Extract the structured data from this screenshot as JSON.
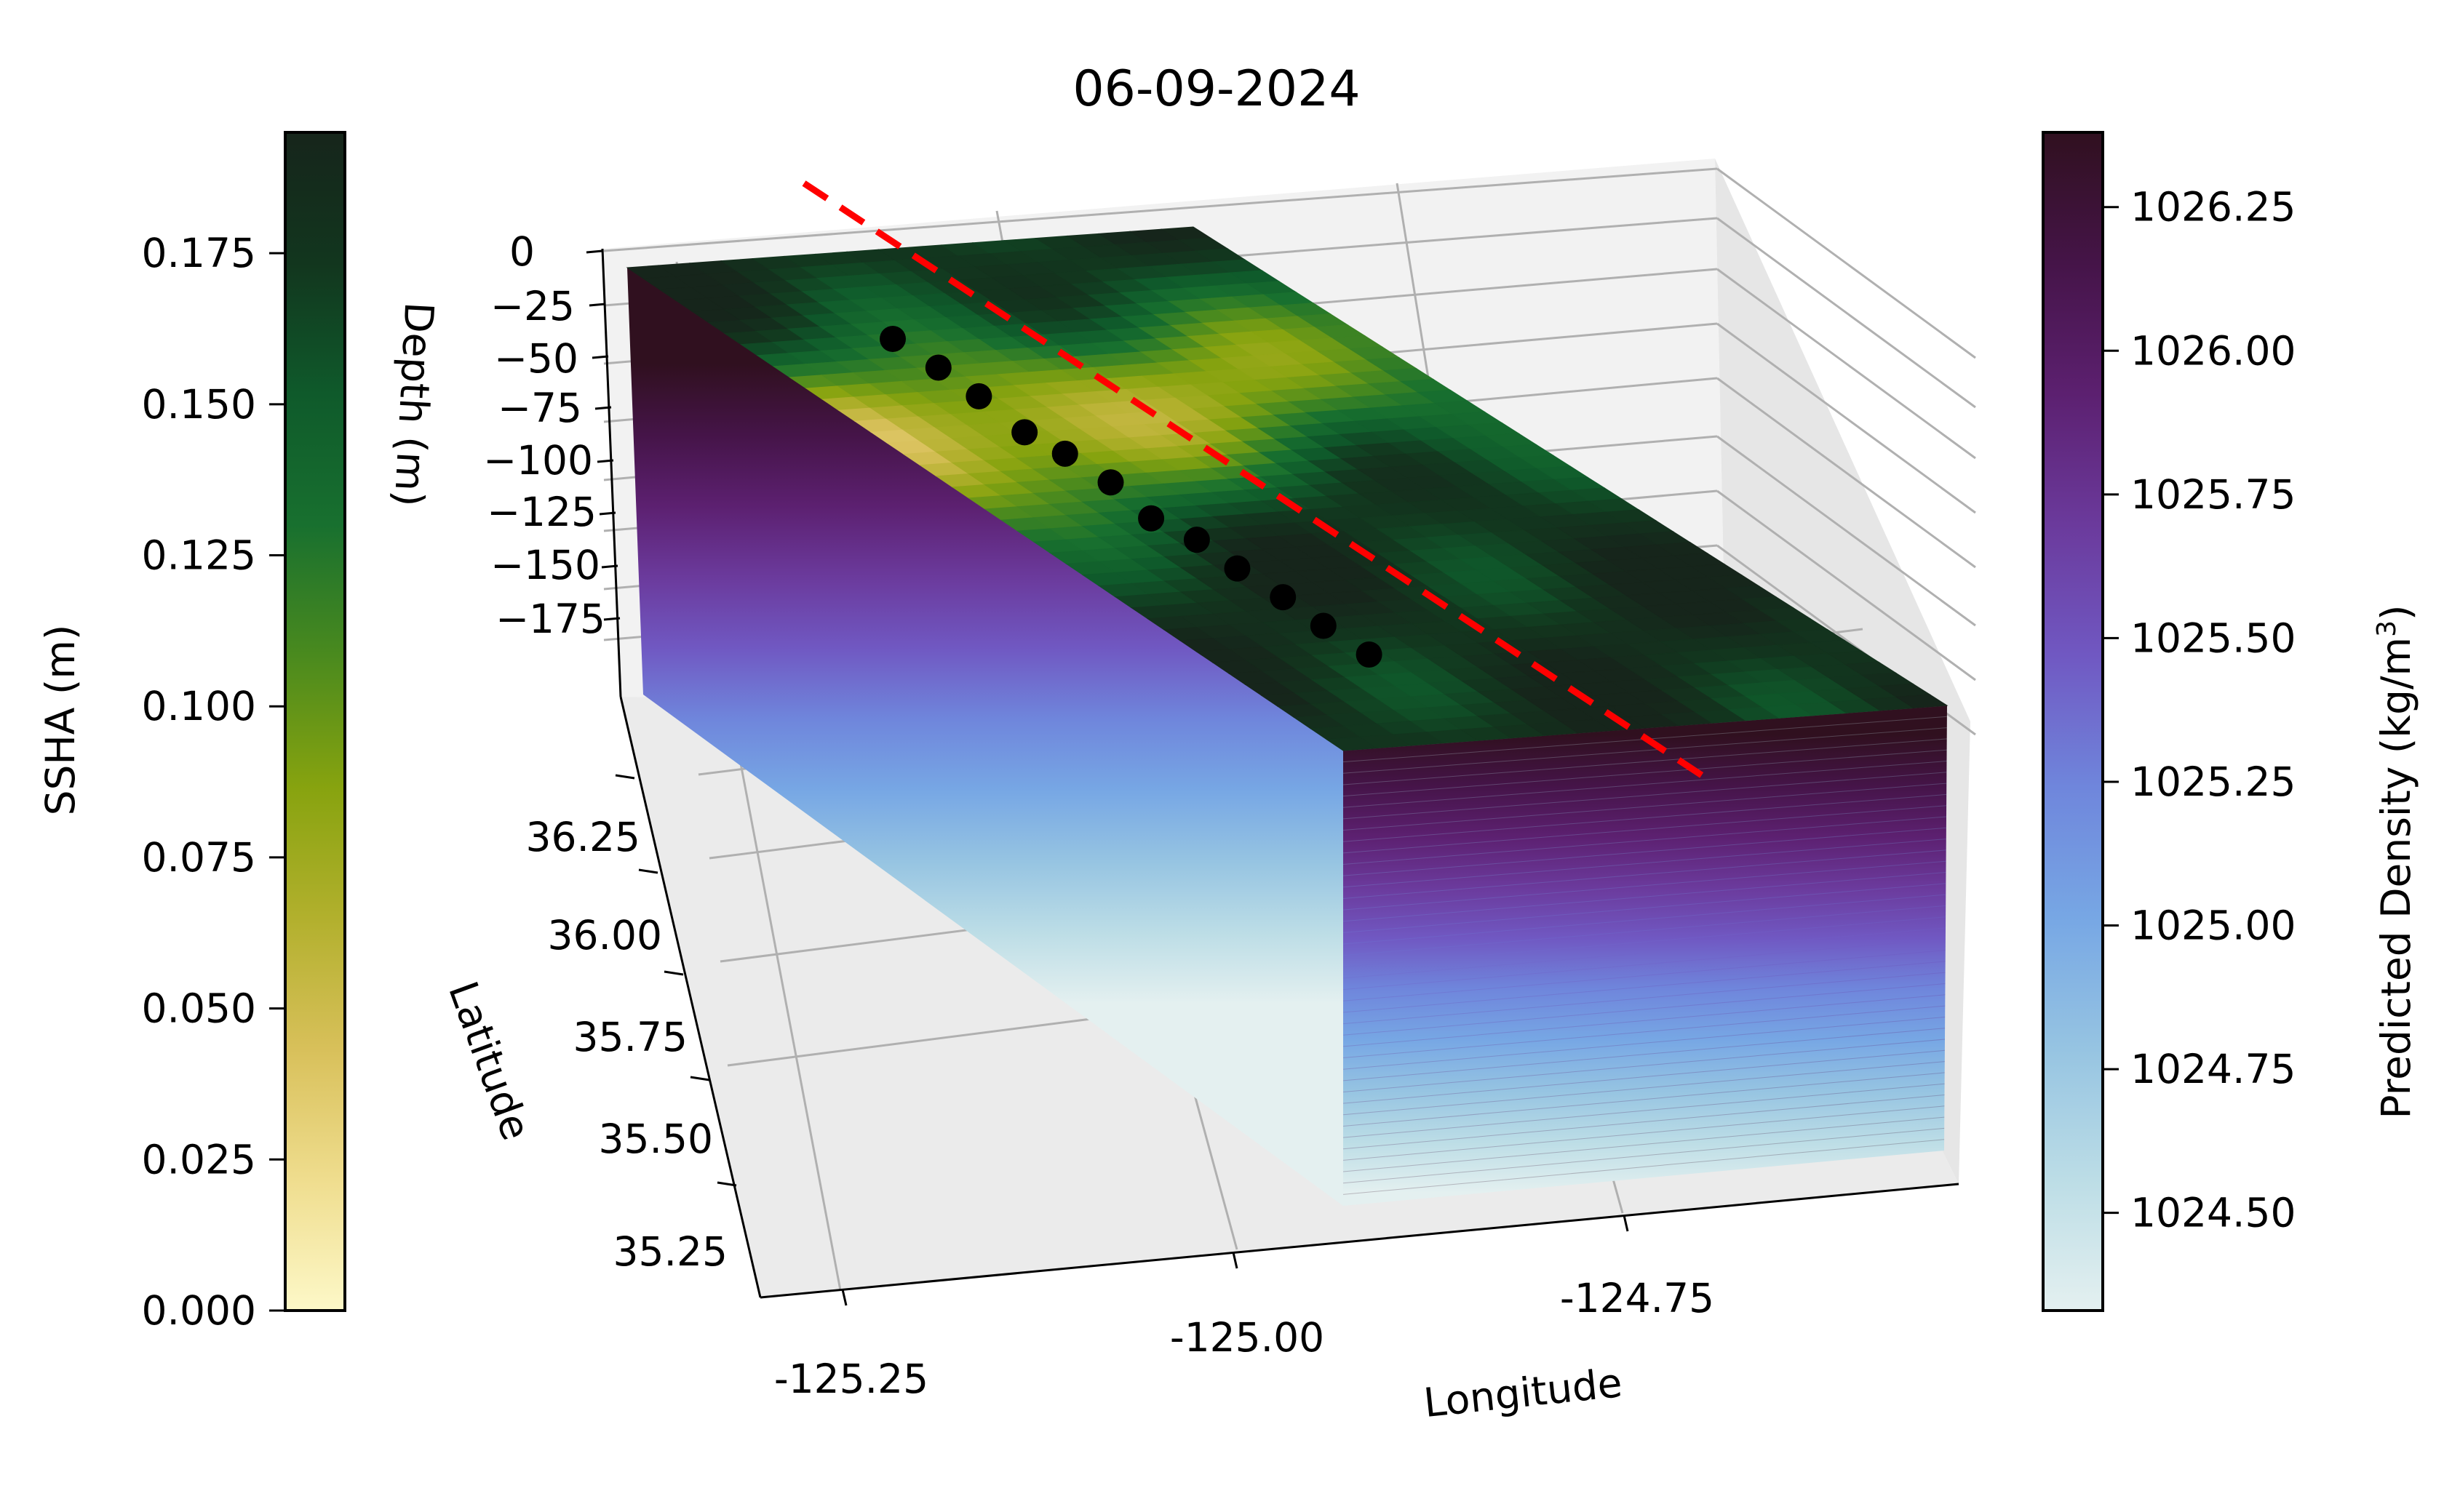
{
  "chart_data": {
    "type": "surface3d",
    "title": "06-09-2024",
    "axes": {
      "x": {
        "label": "Longitude",
        "ticks": [
          "-125.25",
          "-125.00",
          "-124.75"
        ],
        "values": [
          -125.25,
          -125.0,
          -124.75
        ]
      },
      "y": {
        "label": "Latitude",
        "ticks": [
          "36.25",
          "36.00",
          "35.75",
          "35.50",
          "35.25"
        ],
        "values": [
          36.25,
          36.0,
          35.75,
          35.5,
          35.25
        ]
      },
      "z": {
        "label": "Depth (m)",
        "ticks": [
          "0",
          "−25",
          "−50",
          "−75",
          "−100",
          "−125",
          "−150",
          "−175"
        ],
        "values": [
          0,
          -25,
          -50,
          -75,
          -100,
          -125,
          -150,
          -175
        ]
      }
    },
    "grid": true,
    "colorbars": [
      {
        "name": "ssha",
        "label": "SSHA (m)",
        "position": "left",
        "range": [
          0.0,
          0.195
        ],
        "ticks": [
          "0.000",
          "0.025",
          "0.050",
          "0.075",
          "0.100",
          "0.125",
          "0.150",
          "0.175"
        ],
        "tick_values": [
          0.0,
          0.025,
          0.05,
          0.075,
          0.1,
          0.125,
          0.15,
          0.175
        ],
        "colormap": [
          "#fdf8c8",
          "#efdd8e",
          "#d8c05a",
          "#b2b02d",
          "#87a30f",
          "#4a8a1e",
          "#18702f",
          "#0f5a2b",
          "#12361e",
          "#16251b"
        ]
      },
      {
        "name": "density",
        "label": "Predicted Density (kg/m",
        "label_sup": "3",
        "label_end": ")",
        "position": "right",
        "range": [
          1024.33,
          1026.38
        ],
        "ticks": [
          "1024.50",
          "1024.75",
          "1025.00",
          "1025.25",
          "1025.50",
          "1025.75",
          "1026.00",
          "1026.25"
        ],
        "tick_values": [
          1024.5,
          1024.75,
          1025.0,
          1025.25,
          1025.5,
          1025.75,
          1026.0,
          1026.25
        ],
        "colormap": [
          "#e4f0f0",
          "#bcdde6",
          "#96c4e2",
          "#77a7e4",
          "#6f86dc",
          "#7058c2",
          "#6b3a9c",
          "#5c2070",
          "#451448",
          "#30101f"
        ]
      }
    ],
    "surface": {
      "ssha_low": 0.035,
      "ssha_high": 0.18,
      "density_surface": 1024.33,
      "density_bottom": 1026.38,
      "depth_range": [
        -195,
        0
      ]
    },
    "station_points": {
      "color": "#000000",
      "count": 12
    },
    "section_line": {
      "color": "#ff0000",
      "style": "dashed"
    }
  }
}
